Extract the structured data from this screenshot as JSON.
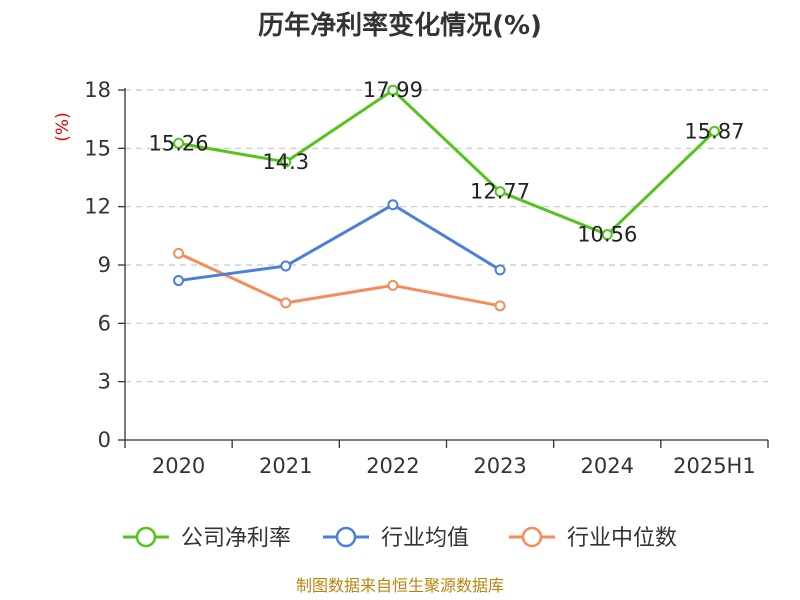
{
  "chart_data": {
    "type": "line",
    "title": "历年净利率变化情况(%)",
    "ylabel": "(%)",
    "categories": [
      "2020",
      "2021",
      "2022",
      "2023",
      "2024",
      "2025H1"
    ],
    "yticks": [
      0,
      3,
      6,
      9,
      12,
      15,
      18
    ],
    "ylim": [
      0,
      18
    ],
    "grid": true,
    "legend_position": "bottom",
    "series": [
      {
        "name": "公司净利率",
        "color": "#52c41a",
        "values": [
          15.26,
          14.3,
          17.99,
          12.77,
          10.56,
          15.87
        ],
        "labels": [
          "15.26",
          "14.3",
          "17.99",
          "12.77",
          "10.56",
          "15.87"
        ]
      },
      {
        "name": "行业均值",
        "color": "#4a7fdc",
        "values": [
          8.2,
          8.95,
          12.1,
          8.75,
          null,
          null
        ]
      },
      {
        "name": "行业中位数",
        "color": "#f58c5a",
        "values": [
          9.6,
          7.05,
          7.95,
          6.9,
          null,
          null
        ]
      }
    ]
  },
  "source": "制图数据来自恒生聚源数据库"
}
